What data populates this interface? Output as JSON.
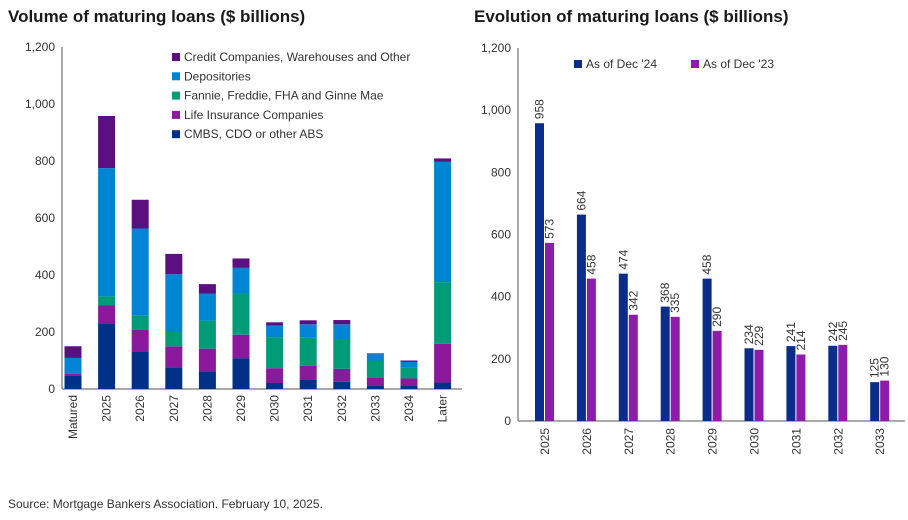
{
  "chart_data": [
    {
      "type": "bar",
      "stacked": true,
      "title": "Volume of maturing loans ($ billions)",
      "ylim": [
        0,
        1200
      ],
      "yticks": [
        0,
        200,
        400,
        600,
        800,
        1000,
        1200
      ],
      "ytick_labels": [
        "0",
        "200",
        "400",
        "600",
        "800",
        "1,000",
        "1,200"
      ],
      "categories": [
        "Matured",
        "2025",
        "2026",
        "2027",
        "2028",
        "2029",
        "2030",
        "2031",
        "2032",
        "2033",
        "2034",
        "Later"
      ],
      "legend_position": "top-right",
      "series": [
        {
          "name": "CMBS, CDO or other ABS",
          "color": "#003087",
          "values": [
            47,
            228,
            132,
            76,
            62,
            108,
            21,
            33,
            25,
            12,
            12,
            23
          ]
        },
        {
          "name": "Life Insurance Companies",
          "color": "#8A1A9B",
          "values": [
            6,
            65,
            75,
            74,
            79,
            82,
            52,
            48,
            46,
            28,
            25,
            136
          ]
        },
        {
          "name": "Fannie, Freddie, FHA and Ginne Mae",
          "color": "#009B77",
          "values": [
            0,
            32,
            50,
            50,
            98,
            145,
            109,
            101,
            101,
            60,
            39,
            216
          ]
        },
        {
          "name": "Depositories",
          "color": "#0085D5",
          "values": [
            56,
            450,
            306,
            203,
            96,
            90,
            41,
            45,
            55,
            22,
            19,
            422
          ]
        },
        {
          "name": "Credit Companies, Warehouses and Other",
          "color": "#5B0F80",
          "values": [
            41,
            183,
            101,
            71,
            33,
            33,
            11,
            14,
            15,
            3,
            5,
            12
          ]
        }
      ]
    },
    {
      "type": "bar",
      "title": "Evolution of maturing loans ($ billions)",
      "ylim": [
        0,
        1200
      ],
      "yticks": [
        0,
        200,
        400,
        600,
        800,
        1000,
        1200
      ],
      "ytick_labels": [
        "0",
        "200",
        "400",
        "600",
        "800",
        "1,000",
        "1,200"
      ],
      "categories": [
        "2025",
        "2026",
        "2027",
        "2028",
        "2029",
        "2030",
        "2031",
        "2032",
        "2033"
      ],
      "legend_position": "top",
      "series": [
        {
          "name": "As of Dec '24",
          "color": "#0A2D8C",
          "values": [
            958,
            664,
            474,
            368,
            458,
            234,
            241,
            242,
            125
          ]
        },
        {
          "name": "As of Dec '23",
          "color": "#8E1CAB",
          "values": [
            573,
            458,
            342,
            335,
            290,
            229,
            214,
            245,
            130
          ]
        }
      ]
    }
  ],
  "source": "Source: Mortgage Bankers Association. February 10, 2025."
}
